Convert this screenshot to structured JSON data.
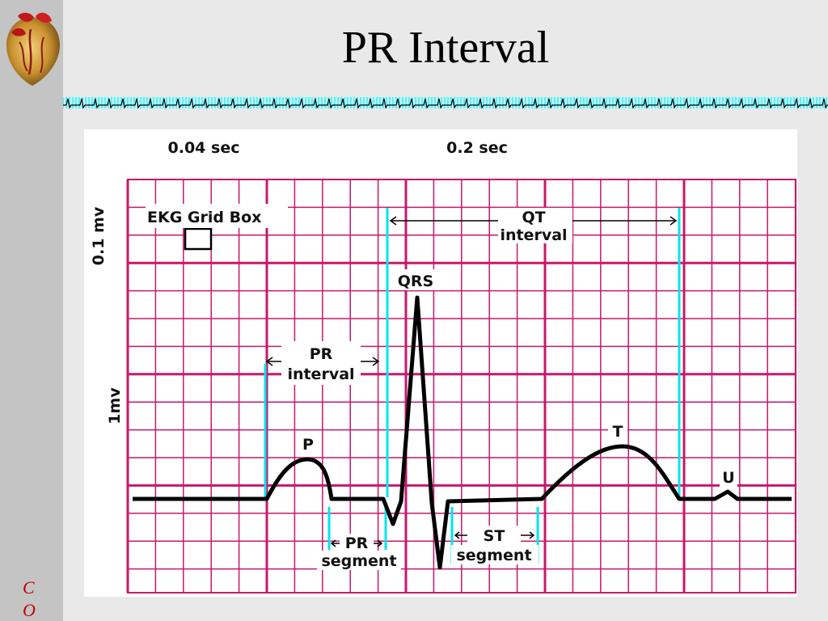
{
  "slide": {
    "title": "PR Interval",
    "sidebar_letters": [
      "C",
      "O"
    ]
  },
  "diagram": {
    "scale_time_label": "0.04 sec",
    "scale_big_time_label": "0.2 sec",
    "scale_small_voltage_label": "0.1 mv",
    "scale_big_voltage_label": "1mv",
    "grid_box_label": "EKG Grid Box",
    "qt_label_1": "QT",
    "qt_label_2": "interval",
    "qrs_label": "QRS",
    "pr_interval_label_1": "PR",
    "pr_interval_label_2": "interval",
    "p_label": "P",
    "t_label": "T",
    "u_label": "U",
    "pr_segment_label_1": "PR",
    "pr_segment_label_2": "segment",
    "st_segment_label_1": "ST",
    "st_segment_label_2": "segment"
  },
  "colors": {
    "grid": "#c8176b",
    "marker": "#00e5ee",
    "trace": "#000000",
    "strip": "#00e5ee",
    "sidebar_letters": "#c00000"
  },
  "icons": {
    "logo": "anatomical-heart-icon",
    "divider": "ekg-waveform-strip"
  }
}
